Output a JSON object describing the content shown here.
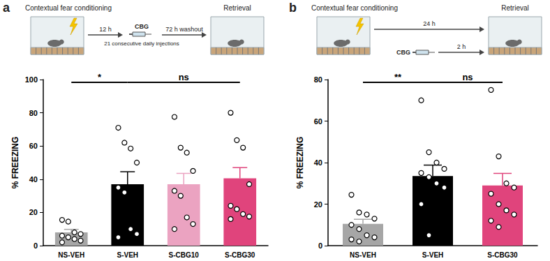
{
  "chart_data": [
    {
      "type": "bar",
      "title": "a",
      "categories": [
        "NS-VEH",
        "S-VEH",
        "S-CBG10",
        "S-CBG30"
      ],
      "values": [
        8,
        37,
        37,
        40.5
      ],
      "errors": [
        1.8,
        7.5,
        6.5,
        6.5
      ],
      "colors": [
        "#a6a6a6",
        "#000000",
        "#eba3c1",
        "#e0447c"
      ],
      "points": [
        [
          15.5,
          14.5,
          8,
          7,
          6,
          5,
          4,
          3,
          2
        ],
        [
          71,
          62,
          58.5,
          50,
          35,
          32,
          10,
          7,
          5
        ],
        [
          77.5,
          59,
          56,
          45,
          33,
          30,
          17,
          13,
          10
        ],
        [
          80,
          63.5,
          59,
          37,
          24,
          22,
          19,
          17.5,
          16
        ]
      ],
      "ylabel": "% FREEZING",
      "ylim": [
        0,
        100
      ],
      "yticks": [
        0,
        20,
        40,
        60,
        80,
        100
      ],
      "grid": false,
      "annotations": [
        {
          "text": "*",
          "from": "NS-VEH",
          "to": "S-VEH"
        },
        {
          "text": "ns",
          "from": "S-VEH",
          "to": "S-CBG30"
        }
      ],
      "schematic": {
        "conditioning": "Contextual fear conditioning",
        "retrieval": "Retrieval",
        "delay": "12 h",
        "drug": "CBG",
        "drug_note": "21 consecutive daily injections",
        "washout": "72 h washout"
      }
    },
    {
      "type": "bar",
      "title": "b",
      "categories": [
        "NS-VEH",
        "S-VEH",
        "S-CBG30"
      ],
      "values": [
        10.5,
        33.5,
        29
      ],
      "errors": [
        2.2,
        5.3,
        5.8
      ],
      "colors": [
        "#a6a6a6",
        "#000000",
        "#e0447c"
      ],
      "points": [
        [
          24.5,
          16,
          15,
          13,
          10,
          8,
          5,
          4,
          3,
          2
        ],
        [
          70,
          45,
          40,
          37,
          35,
          33,
          30,
          28,
          20,
          5
        ],
        [
          75,
          43,
          30,
          28,
          25,
          20,
          17,
          15,
          12,
          9
        ]
      ],
      "ylabel": "% FREEZING",
      "ylim": [
        0,
        80
      ],
      "yticks": [
        0,
        20,
        40,
        60,
        80
      ],
      "grid": false,
      "annotations": [
        {
          "text": "**",
          "from": "NS-VEH",
          "to": "S-VEH"
        },
        {
          "text": "ns",
          "from": "S-VEH",
          "to": "S-CBG30"
        }
      ],
      "schematic": {
        "conditioning": "Contextual fear conditioning",
        "retrieval": "Retrieval",
        "delay": "24 h",
        "drug": "CBG",
        "drug_delay": "2 h"
      }
    }
  ]
}
